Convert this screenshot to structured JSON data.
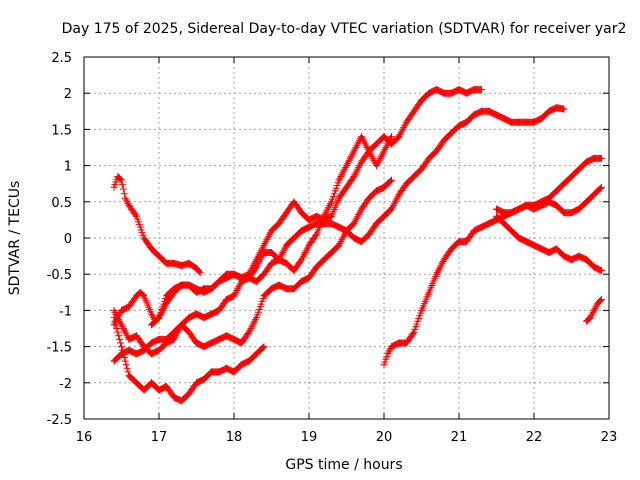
{
  "chart_data": {
    "type": "scatter",
    "title": "Day 175 of 2025, Sidereal Day-to-day VTEC variation (SDTVAR) for receiver yar2",
    "xlabel": "GPS time / hours",
    "ylabel": "SDTVAR / TECUs",
    "xlim": [
      16,
      23
    ],
    "ylim": [
      -2.5,
      2.5
    ],
    "xticks": [
      16,
      17,
      18,
      19,
      20,
      21,
      22,
      23
    ],
    "yticks": [
      -2.5,
      -2,
      -1.5,
      -1,
      -0.5,
      0,
      0.5,
      1,
      1.5,
      2,
      2.5
    ],
    "grid": true,
    "marker": "plus",
    "color": "#ff0000",
    "series": [
      {
        "x": [
          16.4,
          16.45,
          16.5,
          16.55,
          16.6,
          16.7,
          16.8,
          16.9,
          17.0,
          17.1,
          17.2,
          17.3,
          17.4,
          17.5,
          17.55
        ],
        "values": [
          0.7,
          0.85,
          0.8,
          0.55,
          0.45,
          0.3,
          0.0,
          -0.15,
          -0.25,
          -0.35,
          -0.35,
          -0.38,
          -0.35,
          -0.42,
          -0.48
        ]
      },
      {
        "x": [
          16.4,
          16.45,
          16.5,
          16.6,
          16.7,
          16.8,
          16.9,
          17.0,
          17.1,
          17.2,
          17.3,
          17.4,
          17.5,
          17.6,
          17.7,
          17.8,
          17.9,
          18.0,
          18.1,
          18.2,
          18.3,
          18.4
        ],
        "values": [
          -1.1,
          -1.3,
          -1.5,
          -1.9,
          -2.0,
          -2.1,
          -2.0,
          -2.1,
          -2.05,
          -2.2,
          -2.25,
          -2.15,
          -2.0,
          -1.95,
          -1.85,
          -1.85,
          -1.8,
          -1.85,
          -1.75,
          -1.7,
          -1.6,
          -1.5
        ]
      },
      {
        "x": [
          16.4,
          16.45,
          16.5,
          16.6,
          16.7,
          16.8,
          16.9,
          17.0,
          17.1,
          17.2,
          17.3,
          17.4,
          17.5,
          17.6,
          17.7,
          17.8,
          17.9,
          18.0,
          18.1,
          18.2,
          18.3,
          18.4,
          18.5,
          18.6,
          18.7,
          18.8,
          18.9,
          19.0,
          19.1,
          19.2,
          19.3,
          19.4,
          19.5,
          19.6,
          19.7,
          19.8,
          19.9,
          20.0,
          20.1
        ],
        "values": [
          -1.7,
          -1.65,
          -1.6,
          -1.55,
          -1.6,
          -1.55,
          -1.45,
          -1.4,
          -1.4,
          -1.3,
          -1.2,
          -1.3,
          -1.45,
          -1.5,
          -1.45,
          -1.4,
          -1.35,
          -1.4,
          -1.45,
          -1.3,
          -1.1,
          -0.8,
          -0.7,
          -0.65,
          -0.7,
          -0.7,
          -0.6,
          -0.55,
          -0.4,
          -0.3,
          -0.2,
          -0.1,
          0.1,
          0.2,
          0.4,
          0.55,
          0.65,
          0.7,
          0.8
        ]
      },
      {
        "x": [
          16.4,
          16.5,
          16.6,
          16.7,
          16.8,
          16.9,
          17.0,
          17.1,
          17.2,
          17.3,
          17.4,
          17.5,
          17.6,
          17.7,
          17.8,
          17.9,
          18.0,
          18.1,
          18.2,
          18.3,
          18.4,
          18.5,
          18.6,
          18.7,
          18.8,
          18.9,
          19.0,
          19.1,
          19.2,
          19.3,
          19.4,
          19.5,
          19.6,
          19.7,
          19.8,
          19.9,
          20.0,
          20.1
        ],
        "values": [
          -1.0,
          -1.2,
          -1.4,
          -1.35,
          -1.5,
          -1.6,
          -1.55,
          -1.45,
          -1.4,
          -1.2,
          -1.1,
          -1.05,
          -1.1,
          -1.05,
          -1.0,
          -0.85,
          -0.8,
          -0.6,
          -0.55,
          -0.4,
          -0.2,
          -0.2,
          -0.3,
          -0.35,
          -0.45,
          -0.3,
          -0.1,
          0.05,
          0.3,
          0.5,
          0.8,
          1.0,
          1.2,
          1.4,
          1.2,
          1.0,
          1.2,
          1.4
        ]
      },
      {
        "x": [
          16.4,
          16.5,
          16.6,
          16.7,
          16.75,
          16.8,
          16.9,
          16.95,
          17.0,
          17.1,
          17.2,
          17.3,
          17.4,
          17.5,
          17.6,
          17.7,
          17.8,
          17.9,
          18.0,
          18.1,
          18.2,
          18.3,
          18.4,
          18.5,
          18.6,
          18.7,
          18.8,
          18.9,
          19.0,
          19.1,
          19.2,
          19.3,
          19.4,
          19.5,
          19.6,
          19.7,
          19.8,
          19.9,
          20.0,
          20.1,
          20.2,
          20.3,
          20.4,
          20.5,
          20.6,
          20.7,
          20.8,
          20.9,
          21.0,
          21.1,
          21.2,
          21.3,
          21.4,
          21.5,
          21.6,
          21.7,
          21.8,
          21.9,
          22.0,
          22.1,
          22.2,
          22.3,
          22.4
        ],
        "values": [
          -1.2,
          -1.0,
          -0.95,
          -0.8,
          -0.75,
          -0.8,
          -1.05,
          -1.15,
          -1.1,
          -0.8,
          -0.7,
          -0.65,
          -0.65,
          -0.7,
          -0.75,
          -0.7,
          -0.6,
          -0.55,
          -0.5,
          -0.55,
          -0.55,
          -0.6,
          -0.5,
          -0.35,
          -0.3,
          -0.1,
          0.0,
          0.1,
          0.15,
          0.2,
          0.2,
          0.2,
          0.15,
          0.1,
          0.0,
          -0.05,
          0.05,
          0.2,
          0.3,
          0.4,
          0.6,
          0.75,
          0.85,
          0.95,
          1.1,
          1.2,
          1.35,
          1.45,
          1.55,
          1.6,
          1.7,
          1.75,
          1.75,
          1.7,
          1.65,
          1.6,
          1.6,
          1.6,
          1.6,
          1.65,
          1.75,
          1.8,
          1.78
        ]
      },
      {
        "x": [
          16.9,
          17.0,
          17.1,
          17.2,
          17.3,
          17.4,
          17.5,
          17.6,
          17.7,
          17.8,
          17.9,
          18.0,
          18.1,
          18.2,
          18.3,
          18.4,
          18.5,
          18.6,
          18.7,
          18.8,
          18.9,
          19.0,
          19.1,
          19.2,
          19.3,
          19.4,
          19.5,
          19.6,
          19.7,
          19.8,
          19.9,
          20.0,
          20.1,
          20.2,
          20.3,
          20.4,
          20.5,
          20.6,
          20.7,
          20.8,
          20.9,
          21.0,
          21.1,
          21.2,
          21.3
        ],
        "values": [
          -1.2,
          -1.1,
          -0.9,
          -0.75,
          -0.65,
          -0.65,
          -0.75,
          -0.7,
          -0.7,
          -0.6,
          -0.5,
          -0.5,
          -0.55,
          -0.5,
          -0.3,
          -0.1,
          0.1,
          0.2,
          0.35,
          0.5,
          0.35,
          0.25,
          0.3,
          0.25,
          0.3,
          0.55,
          0.7,
          0.85,
          1.05,
          1.2,
          1.3,
          1.4,
          1.3,
          1.4,
          1.6,
          1.75,
          1.9,
          2.0,
          2.05,
          2.0,
          2.0,
          2.05,
          2.0,
          2.05,
          2.05
        ]
      },
      {
        "x": [
          20.0,
          20.05,
          20.1,
          20.2,
          20.3,
          20.4,
          20.5,
          20.6,
          20.7,
          20.8,
          20.9,
          21.0,
          21.1,
          21.2,
          21.3,
          21.4,
          21.5,
          21.6,
          21.7,
          21.8,
          21.9,
          22.0,
          22.1,
          22.2,
          22.3,
          22.4,
          22.5,
          22.6,
          22.7,
          22.8,
          22.9
        ],
        "values": [
          -1.75,
          -1.6,
          -1.5,
          -1.45,
          -1.45,
          -1.3,
          -1.0,
          -0.75,
          -0.5,
          -0.3,
          -0.15,
          -0.05,
          -0.05,
          0.1,
          0.15,
          0.2,
          0.25,
          0.3,
          0.35,
          0.4,
          0.45,
          0.45,
          0.5,
          0.55,
          0.65,
          0.75,
          0.85,
          0.95,
          1.05,
          1.1,
          1.1
        ]
      },
      {
        "x": [
          21.5,
          21.6,
          21.7,
          21.8,
          21.9,
          22.0,
          22.1,
          22.2,
          22.3,
          22.4,
          22.5,
          22.6,
          22.7,
          22.8,
          22.9
        ],
        "values": [
          0.4,
          0.35,
          0.35,
          0.4,
          0.45,
          0.4,
          0.45,
          0.5,
          0.45,
          0.35,
          0.35,
          0.4,
          0.5,
          0.6,
          0.7
        ]
      },
      {
        "x": [
          21.5,
          21.6,
          21.7,
          21.8,
          21.9,
          22.0,
          22.1,
          22.2,
          22.3,
          22.4,
          22.5,
          22.6,
          22.7,
          22.8,
          22.9
        ],
        "values": [
          0.3,
          0.2,
          0.1,
          0.0,
          -0.05,
          -0.1,
          -0.15,
          -0.2,
          -0.15,
          -0.25,
          -0.3,
          -0.25,
          -0.3,
          -0.4,
          -0.45
        ]
      },
      {
        "x": [
          22.7,
          22.75,
          22.8,
          22.85,
          22.9
        ],
        "values": [
          -1.15,
          -1.1,
          -1.0,
          -0.9,
          -0.85
        ]
      }
    ]
  }
}
